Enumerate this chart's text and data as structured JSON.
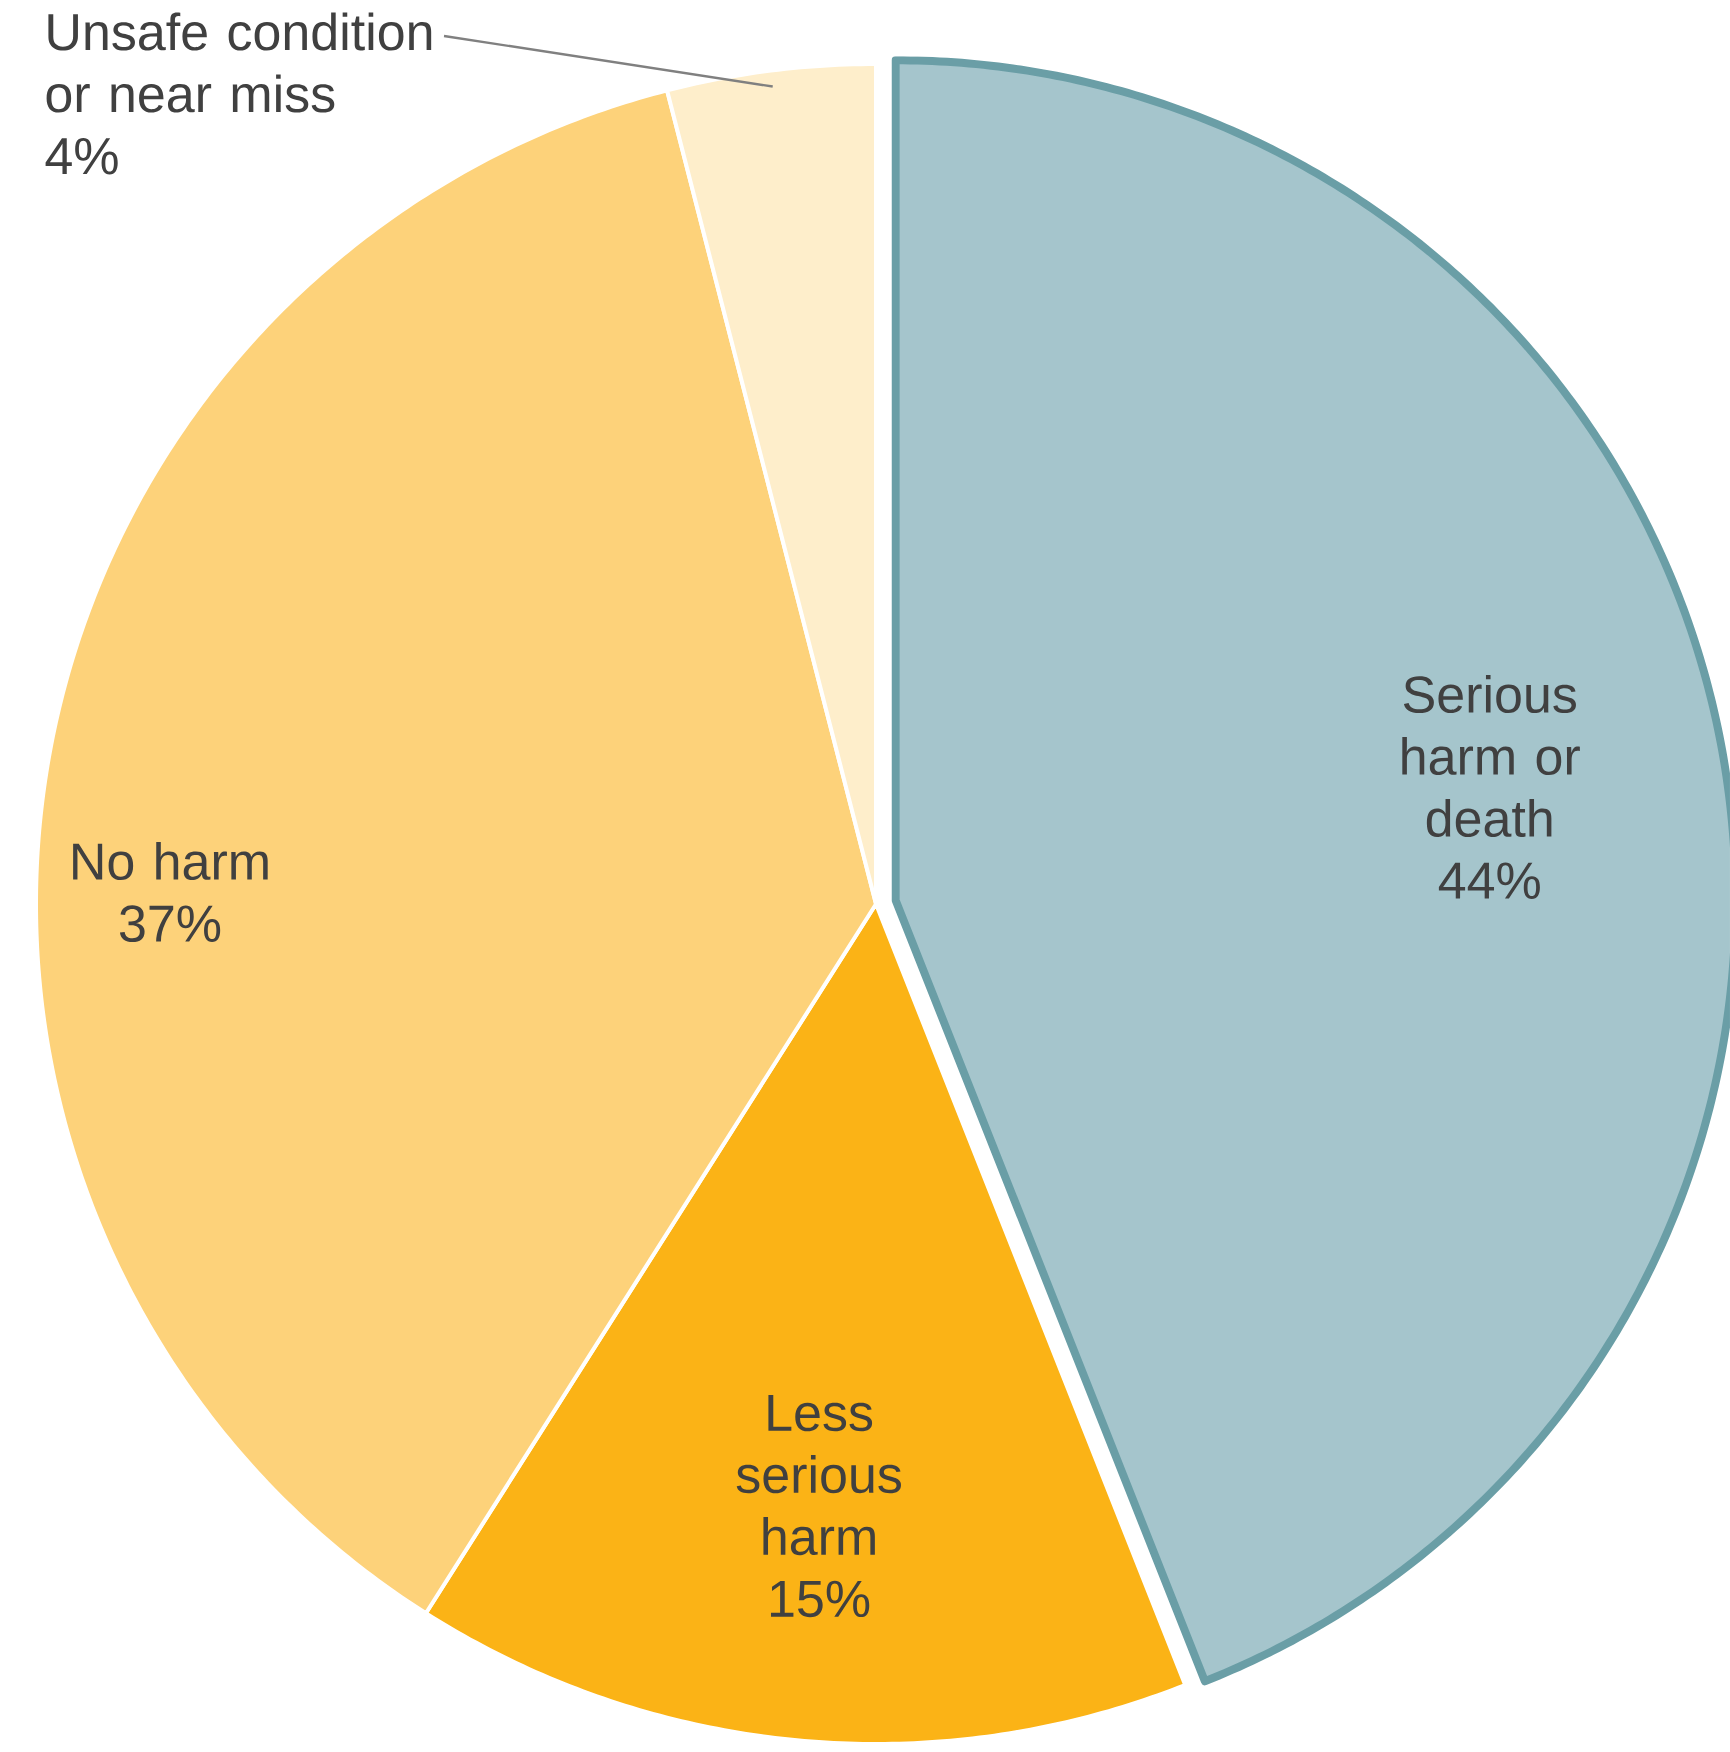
{
  "chart_data": {
    "type": "pie",
    "categories": [
      "Serious harm or death",
      "Less serious harm",
      "No harm",
      "Unsafe condition or near miss"
    ],
    "values": [
      44,
      15,
      37,
      4
    ],
    "colors": [
      "#a5c5cc",
      "#fbb316",
      "#fdd27a",
      "#feeecb"
    ],
    "value_labels": [
      "44%",
      "15%",
      "37%",
      "4%"
    ]
  }
}
